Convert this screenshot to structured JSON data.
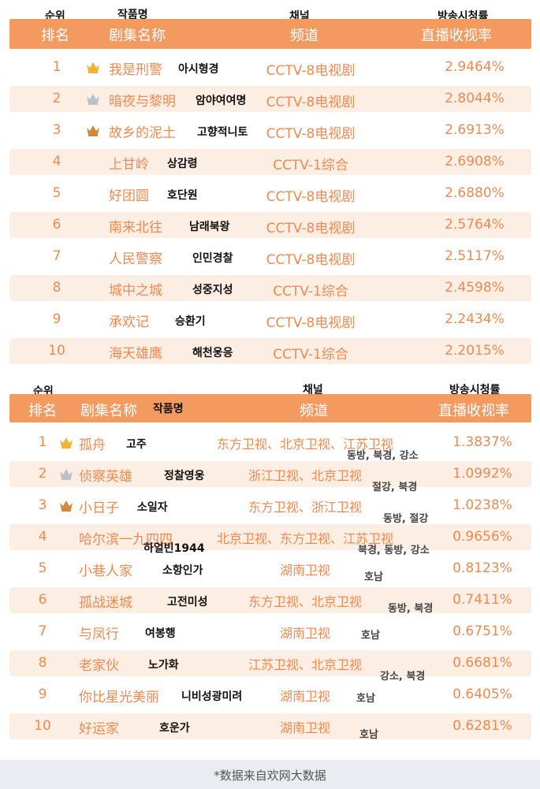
{
  "colors": {
    "header_bg": "#f39a61",
    "accent": "#ee8a50",
    "stripe": "#fdeee3",
    "gold": "#f2b233",
    "silver": "#b9c1c9",
    "bronze": "#d18a3b"
  },
  "table1": {
    "header": {
      "rank_ko": "순위",
      "rank_zh": "排名",
      "title_ko": "작품명",
      "title_zh": "剧集名称",
      "channel_ko": "채널",
      "channel_zh": "频道",
      "rating_ko": "방송시청률",
      "rating_zh": "直播收视率"
    },
    "rows": [
      {
        "rank": "1",
        "crown": "gold",
        "title": "我是刑警",
        "title_ko": "아시형경",
        "channel": "CCTV-8电视剧",
        "rating": "2.9464%"
      },
      {
        "rank": "2",
        "crown": "silver",
        "title": "暗夜与黎明",
        "title_ko": "암야여여명",
        "channel": "CCTV-8电视剧",
        "rating": "2.8044%"
      },
      {
        "rank": "3",
        "crown": "bronze",
        "title": "故乡的泥土",
        "title_ko": "고향적니토",
        "channel": "CCTV-8电视剧",
        "rating": "2.6913%"
      },
      {
        "rank": "4",
        "crown": "",
        "title": "上甘岭",
        "title_ko": "상감령",
        "channel": "CCTV-1综合",
        "rating": "2.6908%"
      },
      {
        "rank": "5",
        "crown": "",
        "title": "好团圆",
        "title_ko": "호단원",
        "channel": "CCTV-8电视剧",
        "rating": "2.6880%"
      },
      {
        "rank": "6",
        "crown": "",
        "title": "南来北往",
        "title_ko": "남래북왕",
        "channel": "CCTV-8电视剧",
        "rating": "2.5764%"
      },
      {
        "rank": "7",
        "crown": "",
        "title": "人民警察",
        "title_ko": "인민경찰",
        "channel": "CCTV-8电视剧",
        "rating": "2.5117%"
      },
      {
        "rank": "8",
        "crown": "",
        "title": "城中之城",
        "title_ko": "성중지성",
        "channel": "CCTV-1综合",
        "rating": "2.4598%"
      },
      {
        "rank": "9",
        "crown": "",
        "title": "承欢记",
        "title_ko": "승환기",
        "channel": "CCTV-8电视剧",
        "rating": "2.2434%"
      },
      {
        "rank": "10",
        "crown": "",
        "title": "海天雄鹰",
        "title_ko": "해천웅응",
        "channel": "CCTV-1综合",
        "rating": "2.2015%"
      }
    ]
  },
  "table2": {
    "header": {
      "rank_ko": "순위",
      "rank_zh": "排名",
      "title_ko": "작품명",
      "title_zh": "剧集名称",
      "channel_ko": "채널",
      "channel_zh": "频道",
      "rating_ko": "방송시청률",
      "rating_zh": "直播收视率"
    },
    "rows": [
      {
        "rank": "1",
        "crown": "gold",
        "title": "孤舟",
        "title_ko": "고주",
        "channel": "东方卫视、北京卫视、江苏卫视",
        "channel_ko": "동방, 북경, 강소",
        "rating": "1.3837%"
      },
      {
        "rank": "2",
        "crown": "silver",
        "title": "侦察英雄",
        "title_ko": "정찰영웅",
        "channel": "浙江卫视、北京卫视",
        "channel_ko": "절강, 북경",
        "rating": "1.0992%"
      },
      {
        "rank": "3",
        "crown": "bronze",
        "title": "小日子",
        "title_ko": "소일자",
        "channel": "东方卫视、浙江卫视",
        "channel_ko": "동방, 절강",
        "rating": "1.0238%"
      },
      {
        "rank": "4",
        "crown": "",
        "title": "哈尔滨一九四四",
        "title_ko": "하얼빈1944",
        "channel": "北京卫视、东方卫视、江苏卫视",
        "channel_ko": "북경, 동방, 강소",
        "rating": "0.9656%"
      },
      {
        "rank": "5",
        "crown": "",
        "title": "小巷人家",
        "title_ko": "소항인가",
        "channel": "湖南卫视",
        "channel_ko": "호남",
        "rating": "0.8123%"
      },
      {
        "rank": "6",
        "crown": "",
        "title": "孤战迷城",
        "title_ko": "고전미성",
        "channel": "东方卫视、北京卫视",
        "channel_ko": "동방, 북경",
        "rating": "0.7411%"
      },
      {
        "rank": "7",
        "crown": "",
        "title": "与凤行",
        "title_ko": "여봉행",
        "channel": "湖南卫视",
        "channel_ko": "호남",
        "rating": "0.6751%"
      },
      {
        "rank": "8",
        "crown": "",
        "title": "老家伙",
        "title_ko": "노가화",
        "channel": "江苏卫视、北京卫视",
        "channel_ko": "강소, 북경",
        "rating": "0.6681%"
      },
      {
        "rank": "9",
        "crown": "",
        "title": "你比星光美丽",
        "title_ko": "니비성광미려",
        "channel": "湖南卫视",
        "channel_ko": "호남",
        "rating": "0.6405%"
      },
      {
        "rank": "10",
        "crown": "",
        "title": "好运家",
        "title_ko": "호운가",
        "channel": "湖南卫视",
        "channel_ko": "호남",
        "rating": "0.6281%"
      }
    ]
  },
  "footer": {
    "text": "*数据来自欢网大数据"
  }
}
